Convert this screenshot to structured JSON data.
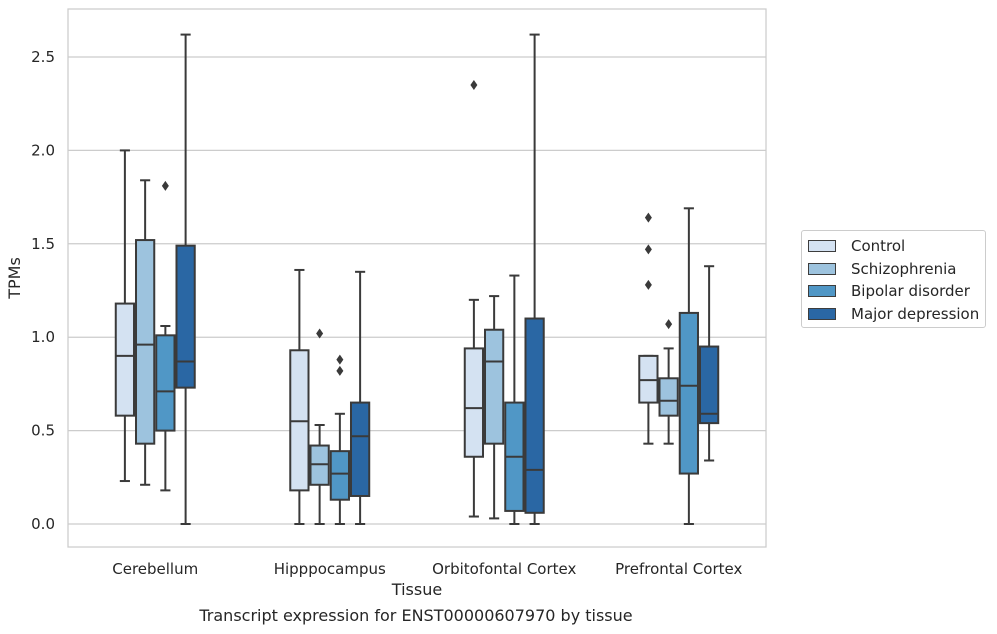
{
  "chart_data": {
    "type": "box",
    "title": "",
    "xlabel": "Tissue",
    "ylabel": "TPMs",
    "caption": "Transcript expression for ENST00000607970 by tissue",
    "ylim": [
      -0.13,
      2.76
    ],
    "yticks": [
      0.0,
      0.5,
      1.0,
      1.5,
      2.0,
      2.5
    ],
    "ytick_labels": [
      "0.0",
      "0.5",
      "1.0",
      "1.5",
      "2.0",
      "2.5"
    ],
    "grid": "horizontal",
    "legend_position": "right",
    "categories": [
      "Cerebellum",
      "Hipppocampus",
      "Orbitofontal Cortex",
      "Prefrontal Cortex"
    ],
    "series": [
      {
        "name": "Control",
        "color": "#d4e2f2",
        "boxes": [
          {
            "whislo": 0.23,
            "q1": 0.58,
            "med": 0.9,
            "q3": 1.18,
            "whishi": 2.0,
            "fliers": []
          },
          {
            "whislo": 0.0,
            "q1": 0.18,
            "med": 0.55,
            "q3": 0.93,
            "whishi": 1.36,
            "fliers": []
          },
          {
            "whislo": 0.04,
            "q1": 0.36,
            "med": 0.62,
            "q3": 0.94,
            "whishi": 1.2,
            "fliers": [
              2.35
            ]
          },
          {
            "whislo": 0.43,
            "q1": 0.65,
            "med": 0.77,
            "q3": 0.9,
            "whishi": 0.9,
            "fliers": [
              1.28,
              1.47,
              1.64
            ]
          }
        ]
      },
      {
        "name": "Schizophrenia",
        "color": "#9dc3de",
        "boxes": [
          {
            "whislo": 0.21,
            "q1": 0.43,
            "med": 0.96,
            "q3": 1.52,
            "whishi": 1.84,
            "fliers": []
          },
          {
            "whislo": 0.0,
            "q1": 0.21,
            "med": 0.32,
            "q3": 0.42,
            "whishi": 0.53,
            "fliers": [
              1.02
            ]
          },
          {
            "whislo": 0.03,
            "q1": 0.43,
            "med": 0.87,
            "q3": 1.04,
            "whishi": 1.22,
            "fliers": []
          },
          {
            "whislo": 0.43,
            "q1": 0.58,
            "med": 0.66,
            "q3": 0.78,
            "whishi": 0.94,
            "fliers": [
              1.07
            ]
          }
        ]
      },
      {
        "name": "Bipolar disorder",
        "color": "#5097c6",
        "boxes": [
          {
            "whislo": 0.18,
            "q1": 0.5,
            "med": 0.71,
            "q3": 1.01,
            "whishi": 1.06,
            "fliers": [
              1.81
            ]
          },
          {
            "whislo": 0.0,
            "q1": 0.13,
            "med": 0.27,
            "q3": 0.39,
            "whishi": 0.59,
            "fliers": [
              0.82,
              0.88
            ]
          },
          {
            "whislo": 0.0,
            "q1": 0.07,
            "med": 0.36,
            "q3": 0.65,
            "whishi": 1.33,
            "fliers": []
          },
          {
            "whislo": 0.0,
            "q1": 0.27,
            "med": 0.74,
            "q3": 1.13,
            "whishi": 1.69,
            "fliers": []
          }
        ]
      },
      {
        "name": "Major depression",
        "color": "#2a67a4",
        "boxes": [
          {
            "whislo": 0.0,
            "q1": 0.73,
            "med": 0.87,
            "q3": 1.49,
            "whishi": 2.62,
            "fliers": []
          },
          {
            "whislo": 0.0,
            "q1": 0.15,
            "med": 0.47,
            "q3": 0.65,
            "whishi": 1.35,
            "fliers": []
          },
          {
            "whislo": 0.0,
            "q1": 0.06,
            "med": 0.29,
            "q3": 1.1,
            "whishi": 2.62,
            "fliers": []
          },
          {
            "whislo": 0.34,
            "q1": 0.54,
            "med": 0.59,
            "q3": 0.95,
            "whishi": 1.38,
            "fliers": []
          }
        ]
      }
    ]
  }
}
